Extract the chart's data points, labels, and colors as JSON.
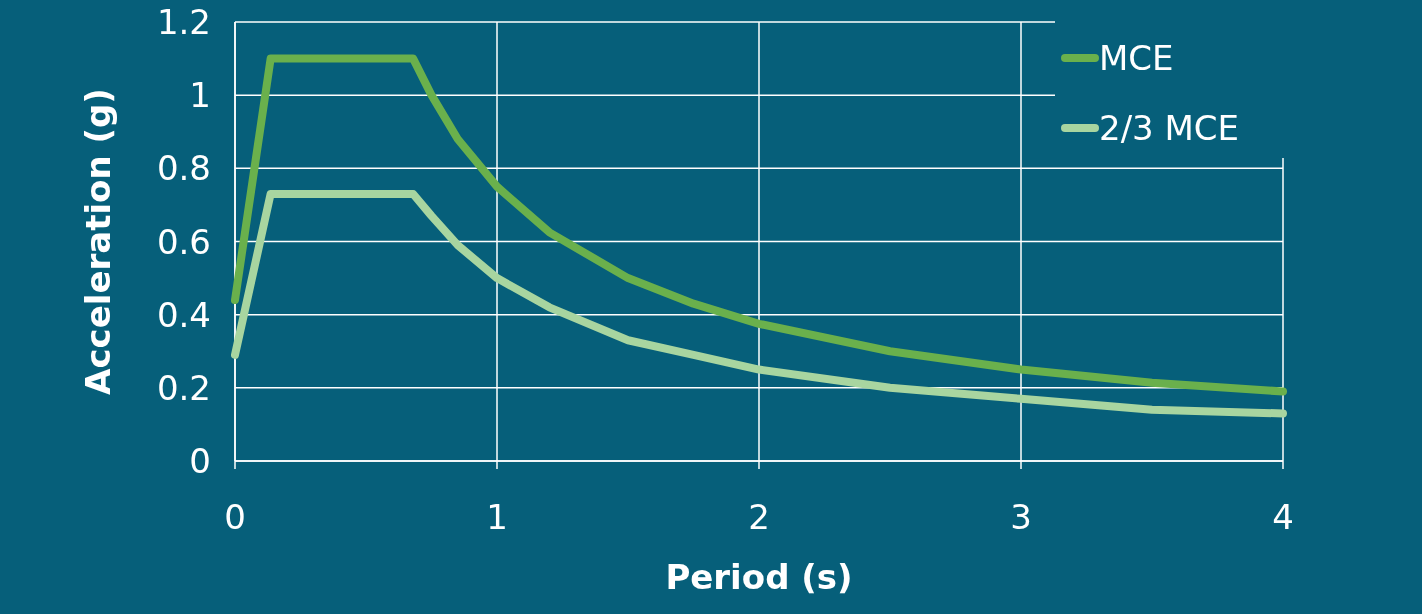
{
  "chart_data": {
    "type": "line",
    "xlabel": "Period (s)",
    "ylabel": "Acceleration (g)",
    "xlim": [
      0,
      4
    ],
    "xticks": [
      0,
      1,
      2,
      3,
      4
    ],
    "ylim": [
      0,
      1.2
    ],
    "yticks": [
      0,
      0.2,
      0.4,
      0.6,
      0.8,
      1,
      1.2
    ],
    "grid": true,
    "legend": "top right",
    "marker": "none",
    "line_style": "solid",
    "x": [
      0,
      0.136,
      0.68,
      0.75,
      0.85,
      1,
      1.2,
      1.5,
      1.75,
      2,
      2.5,
      3,
      3.5,
      4
    ],
    "series": [
      {
        "name": "MCE",
        "color": "#6ab04c",
        "values": [
          0.44,
          1.1,
          1.1,
          1.0,
          0.88,
          0.75,
          0.625,
          0.5,
          0.43,
          0.375,
          0.3,
          0.25,
          0.214,
          0.19
        ]
      },
      {
        "name": "2/3 MCE",
        "color": "#a8d5a0",
        "values": [
          0.29,
          0.73,
          0.73,
          0.67,
          0.59,
          0.5,
          0.42,
          0.33,
          0.29,
          0.25,
          0.2,
          0.17,
          0.14,
          0.13
        ]
      }
    ]
  }
}
